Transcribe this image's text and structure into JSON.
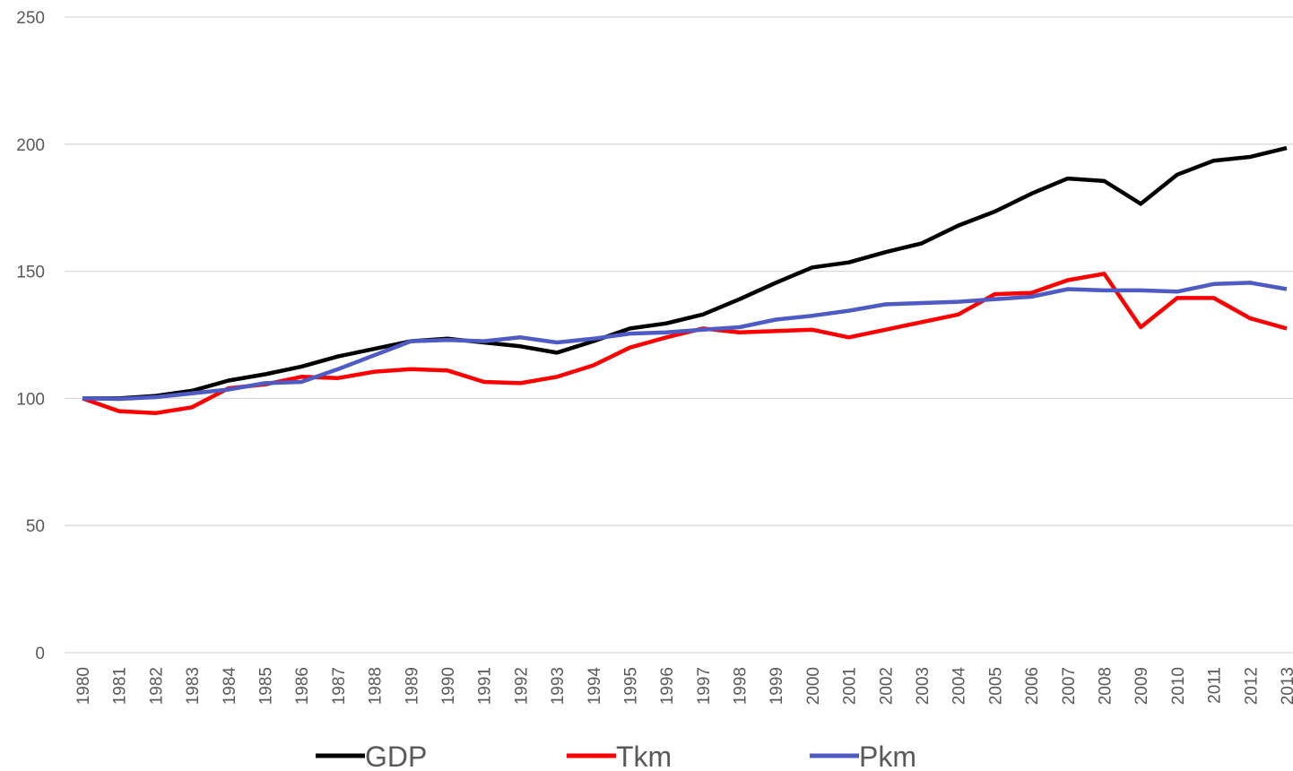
{
  "chart_data": {
    "type": "line",
    "categories": [
      "1980",
      "1981",
      "1982",
      "1983",
      "1984",
      "1985",
      "1986",
      "1987",
      "1988",
      "1989",
      "1990",
      "1991",
      "1992",
      "1993",
      "1994",
      "1995",
      "1996",
      "1997",
      "1998",
      "1999",
      "2000",
      "2001",
      "2002",
      "2003",
      "2004",
      "2005",
      "2006",
      "2007",
      "2008",
      "2009",
      "2010",
      "2011",
      "2012",
      "2013"
    ],
    "series": [
      {
        "name": "GDP",
        "color": "#000000",
        "values": [
          100,
          100,
          101,
          103,
          107,
          109.5,
          112.5,
          116.5,
          119.5,
          122.5,
          123.5,
          122,
          120.5,
          118,
          122.5,
          127.5,
          129.5,
          133,
          139,
          145.5,
          151.5,
          153.5,
          157.5,
          161,
          168,
          173.5,
          180.5,
          186.5,
          185.5,
          176.5,
          188,
          193.5,
          195,
          198.5
        ]
      },
      {
        "name": "Tkm",
        "color": "#ff0000",
        "values": [
          100,
          95,
          94.2,
          96.5,
          104,
          105.5,
          108.5,
          108,
          110.5,
          111.5,
          111,
          106.5,
          106,
          108.5,
          113,
          120,
          124,
          127.5,
          126,
          126.5,
          127,
          124,
          127,
          130,
          133,
          141,
          141.5,
          146.5,
          149,
          128,
          139.5,
          139.5,
          131.5,
          127.5
        ]
      },
      {
        "name": "Pkm",
        "color": "#4f5bc4",
        "values": [
          100,
          99.8,
          100.5,
          102,
          103.5,
          106,
          106.5,
          111.5,
          117,
          122.5,
          123,
          122.5,
          124,
          122,
          123.5,
          125.5,
          126,
          127,
          128,
          131,
          132.5,
          134.5,
          137,
          137.5,
          138,
          139,
          140,
          143,
          142.5,
          142.5,
          142,
          145,
          145.5,
          143
        ]
      }
    ],
    "ylim": [
      0,
      250
    ],
    "yticks": [
      0,
      50,
      100,
      150,
      200,
      250
    ],
    "grid": true,
    "legend": "bottom"
  }
}
